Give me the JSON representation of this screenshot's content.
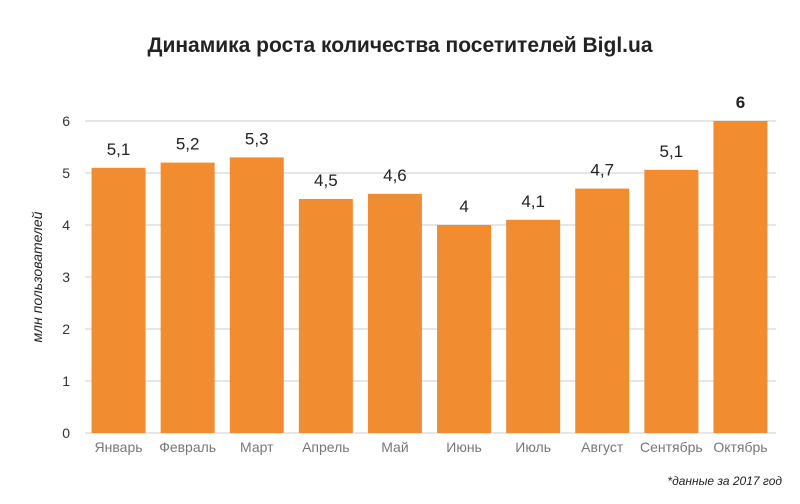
{
  "chart_data": {
    "type": "bar",
    "title": "Динамика роста количества посетителей Bigl.ua",
    "xlabel": "",
    "ylabel": "млн пользователей",
    "ylim": [
      0,
      6
    ],
    "yticks": [
      "0",
      "1",
      "2",
      "3",
      "4",
      "5",
      "6"
    ],
    "grid": true,
    "categories": [
      "Январь",
      "Февраль",
      "Март",
      "Апрель",
      "Май",
      "Июнь",
      "Июль",
      "Август",
      "Сентябрь",
      "Октябрь"
    ],
    "values": [
      5.1,
      5.2,
      5.3,
      4.5,
      4.6,
      4.0,
      4.1,
      4.7,
      5.06,
      6.0
    ],
    "data_labels": [
      "5,1",
      "5,2",
      "5,3",
      "4,5",
      "4,6",
      "4",
      "4,1",
      "4,7",
      "5,1",
      "6"
    ],
    "bar_color": "#f28c30",
    "note": "*данные за 2017 год"
  }
}
